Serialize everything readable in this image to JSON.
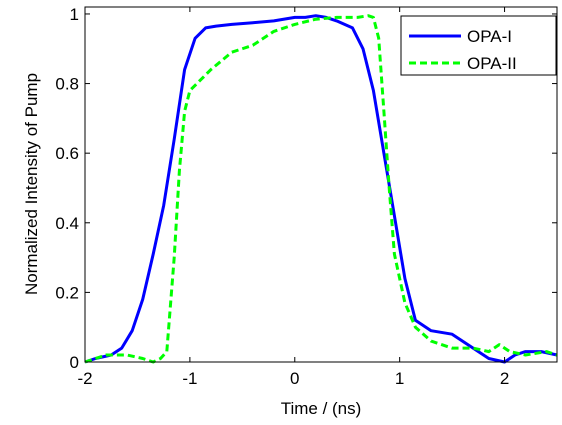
{
  "chart_data": {
    "type": "line",
    "title": "",
    "xlabel": "Time / (ns)",
    "ylabel": "Normalized Intensity of Pump",
    "xlim": [
      -2,
      2.5
    ],
    "ylim": [
      0,
      1.02
    ],
    "xticks": [
      -2,
      -1,
      0,
      1,
      2
    ],
    "xtick_labels": [
      "-2",
      "-1",
      "0",
      "1",
      "2"
    ],
    "yticks": [
      0,
      0.2,
      0.4,
      0.6,
      0.8,
      1
    ],
    "ytick_labels": [
      "0",
      "0.2",
      "0.4",
      "0.6",
      "0.8",
      "1"
    ],
    "grid": false,
    "legend_position": "top-right",
    "series": [
      {
        "name": "OPA-I",
        "color": "#0000ff",
        "style": "solid",
        "x": [
          -2.0,
          -1.9,
          -1.75,
          -1.65,
          -1.55,
          -1.45,
          -1.35,
          -1.25,
          -1.15,
          -1.05,
          -0.95,
          -0.85,
          -0.75,
          -0.6,
          -0.4,
          -0.2,
          0.0,
          0.1,
          0.2,
          0.3,
          0.4,
          0.55,
          0.65,
          0.75,
          0.85,
          0.95,
          1.05,
          1.15,
          1.3,
          1.5,
          1.7,
          1.85,
          2.0,
          2.1,
          2.2,
          2.35,
          2.5
        ],
        "y": [
          0.0,
          0.01,
          0.02,
          0.04,
          0.09,
          0.18,
          0.31,
          0.45,
          0.64,
          0.84,
          0.93,
          0.96,
          0.965,
          0.97,
          0.975,
          0.98,
          0.99,
          0.99,
          0.995,
          0.99,
          0.98,
          0.96,
          0.9,
          0.78,
          0.6,
          0.42,
          0.24,
          0.12,
          0.09,
          0.08,
          0.04,
          0.01,
          0.0,
          0.02,
          0.03,
          0.03,
          0.02
        ]
      },
      {
        "name": "OPA-II",
        "color": "#00ff00",
        "style": "dashed",
        "x": [
          -2.0,
          -1.9,
          -1.8,
          -1.6,
          -1.45,
          -1.35,
          -1.28,
          -1.22,
          -1.15,
          -1.1,
          -1.05,
          -1.0,
          -0.9,
          -0.8,
          -0.6,
          -0.4,
          -0.2,
          0.0,
          0.2,
          0.4,
          0.6,
          0.7,
          0.75,
          0.8,
          0.85,
          0.9,
          0.95,
          1.05,
          1.15,
          1.3,
          1.5,
          1.7,
          1.85,
          1.95,
          2.05,
          2.2,
          2.4,
          2.5
        ],
        "y": [
          0.0,
          0.01,
          0.02,
          0.02,
          0.01,
          0.0,
          0.01,
          0.03,
          0.3,
          0.55,
          0.72,
          0.78,
          0.81,
          0.84,
          0.89,
          0.91,
          0.95,
          0.97,
          0.985,
          0.99,
          0.99,
          0.995,
          0.99,
          0.93,
          0.72,
          0.5,
          0.31,
          0.17,
          0.1,
          0.06,
          0.04,
          0.04,
          0.03,
          0.05,
          0.03,
          0.02,
          0.03,
          0.02
        ]
      }
    ]
  }
}
